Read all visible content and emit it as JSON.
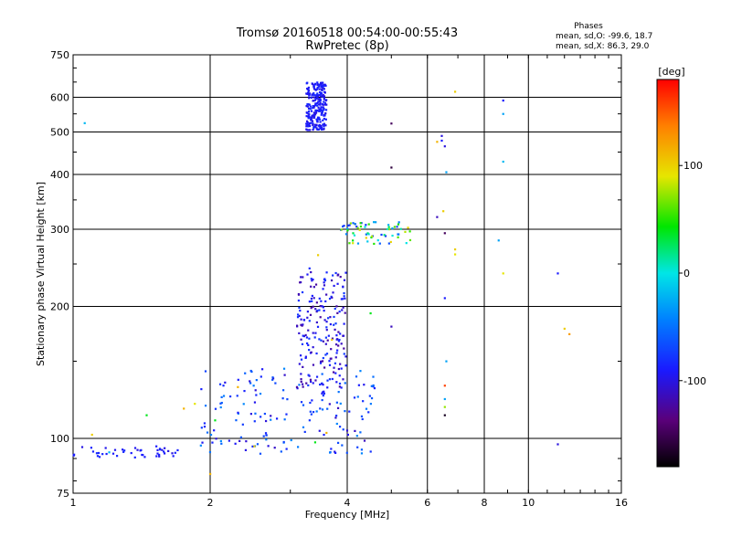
{
  "chart_data": {
    "type": "scatter",
    "title": "Tromsø 20160518 00:54:00-00:55:43",
    "subtitle": "RwPretec (8p)",
    "xlabel": "Frequency [MHz]",
    "ylabel": "Stationary phase Virtual Height [km]",
    "x_scale": "log",
    "y_scale": "log",
    "xlim": [
      1,
      16
    ],
    "ylim": [
      75,
      750
    ],
    "x_ticks": [
      1,
      2,
      4,
      6,
      8,
      10,
      16
    ],
    "x_tick_labels": [
      "1",
      "2",
      "4",
      "6",
      "8",
      "10",
      "16"
    ],
    "y_ticks": [
      75,
      100,
      200,
      300,
      400,
      500,
      600,
      750
    ],
    "y_tick_labels": [
      "75",
      "100",
      "200",
      "300",
      "400",
      "500",
      "600",
      "750"
    ],
    "grid": true,
    "phase_box": {
      "heading": "Phases",
      "line_o": "mean, sd,O: -99.6, 18.7",
      "line_x": "mean, sd,X: 86.3, 29.0"
    },
    "colorbar": {
      "label": "[deg]",
      "range": [
        -180,
        180
      ],
      "ticks": [
        100,
        0,
        -100
      ],
      "tick_labels": [
        "100",
        "0",
        "-100"
      ]
    },
    "clusters": [
      {
        "note": "low-frequency trace",
        "x_range": [
          1.0,
          1.7
        ],
        "y_range": [
          90,
          96
        ],
        "phase_range": [
          -110,
          -90
        ],
        "count": 45
      },
      {
        "note": "E-region trace",
        "x_range": [
          1.9,
          4.6
        ],
        "y_range": [
          92,
          145
        ],
        "phase_range": [
          -120,
          -40
        ],
        "count": 170
      },
      {
        "note": "F1 rising trace",
        "x_range": [
          3.1,
          4.0
        ],
        "y_range": [
          130,
          245
        ],
        "phase_range": [
          -130,
          -80
        ],
        "count": 200
      },
      {
        "note": "F2 trace",
        "x_range": [
          3.85,
          5.5
        ],
        "y_range": [
          278,
          312
        ],
        "phase_range": [
          -100,
          110
        ],
        "count": 65
      },
      {
        "note": "multiple echo",
        "x_range": [
          3.25,
          3.6
        ],
        "y_range": [
          505,
          650
        ],
        "phase_range": [
          -110,
          -90
        ],
        "count": 240
      }
    ],
    "points": [
      {
        "x": 1.06,
        "y": 524,
        "phase": -20
      },
      {
        "x": 5.0,
        "y": 523,
        "phase": -150
      },
      {
        "x": 5.0,
        "y": 415,
        "phase": -160
      },
      {
        "x": 6.9,
        "y": 618,
        "phase": 110
      },
      {
        "x": 8.8,
        "y": 590,
        "phase": -100
      },
      {
        "x": 8.8,
        "y": 550,
        "phase": -30
      },
      {
        "x": 8.8,
        "y": 428,
        "phase": -20
      },
      {
        "x": 8.6,
        "y": 283,
        "phase": -30
      },
      {
        "x": 8.8,
        "y": 238,
        "phase": 100
      },
      {
        "x": 11.6,
        "y": 238,
        "phase": -100
      },
      {
        "x": 12.0,
        "y": 178,
        "phase": 110
      },
      {
        "x": 12.3,
        "y": 173,
        "phase": 130
      },
      {
        "x": 11.6,
        "y": 97,
        "phase": -110
      },
      {
        "x": 6.3,
        "y": 475,
        "phase": 120
      },
      {
        "x": 6.45,
        "y": 490,
        "phase": -110
      },
      {
        "x": 6.45,
        "y": 478,
        "phase": -100
      },
      {
        "x": 6.55,
        "y": 464,
        "phase": -110
      },
      {
        "x": 6.6,
        "y": 405,
        "phase": -30
      },
      {
        "x": 6.3,
        "y": 320,
        "phase": -120
      },
      {
        "x": 6.5,
        "y": 330,
        "phase": 110
      },
      {
        "x": 6.55,
        "y": 294,
        "phase": -150
      },
      {
        "x": 6.9,
        "y": 270,
        "phase": 110
      },
      {
        "x": 6.9,
        "y": 263,
        "phase": 100
      },
      {
        "x": 6.55,
        "y": 209,
        "phase": -100
      },
      {
        "x": 6.6,
        "y": 150,
        "phase": -30
      },
      {
        "x": 6.55,
        "y": 132,
        "phase": 160
      },
      {
        "x": 6.55,
        "y": 123,
        "phase": -30
      },
      {
        "x": 6.55,
        "y": 118,
        "phase": 80
      },
      {
        "x": 6.55,
        "y": 113,
        "phase": -170
      },
      {
        "x": 5.0,
        "y": 180,
        "phase": -120
      },
      {
        "x": 4.5,
        "y": 193,
        "phase": 40
      },
      {
        "x": 1.1,
        "y": 102,
        "phase": 110
      },
      {
        "x": 1.2,
        "y": 93,
        "phase": -20
      },
      {
        "x": 1.45,
        "y": 113,
        "phase": 40
      },
      {
        "x": 1.75,
        "y": 117,
        "phase": 120
      },
      {
        "x": 1.85,
        "y": 120,
        "phase": 100
      },
      {
        "x": 2.0,
        "y": 83,
        "phase": 120
      },
      {
        "x": 2.05,
        "y": 110,
        "phase": 40
      },
      {
        "x": 2.3,
        "y": 131,
        "phase": 120
      },
      {
        "x": 2.5,
        "y": 96,
        "phase": 110
      },
      {
        "x": 3.45,
        "y": 262,
        "phase": 110
      },
      {
        "x": 3.6,
        "y": 103,
        "phase": 120
      },
      {
        "x": 3.4,
        "y": 98,
        "phase": 40
      },
      {
        "x": 3.7,
        "y": 168,
        "phase": 110
      }
    ]
  }
}
